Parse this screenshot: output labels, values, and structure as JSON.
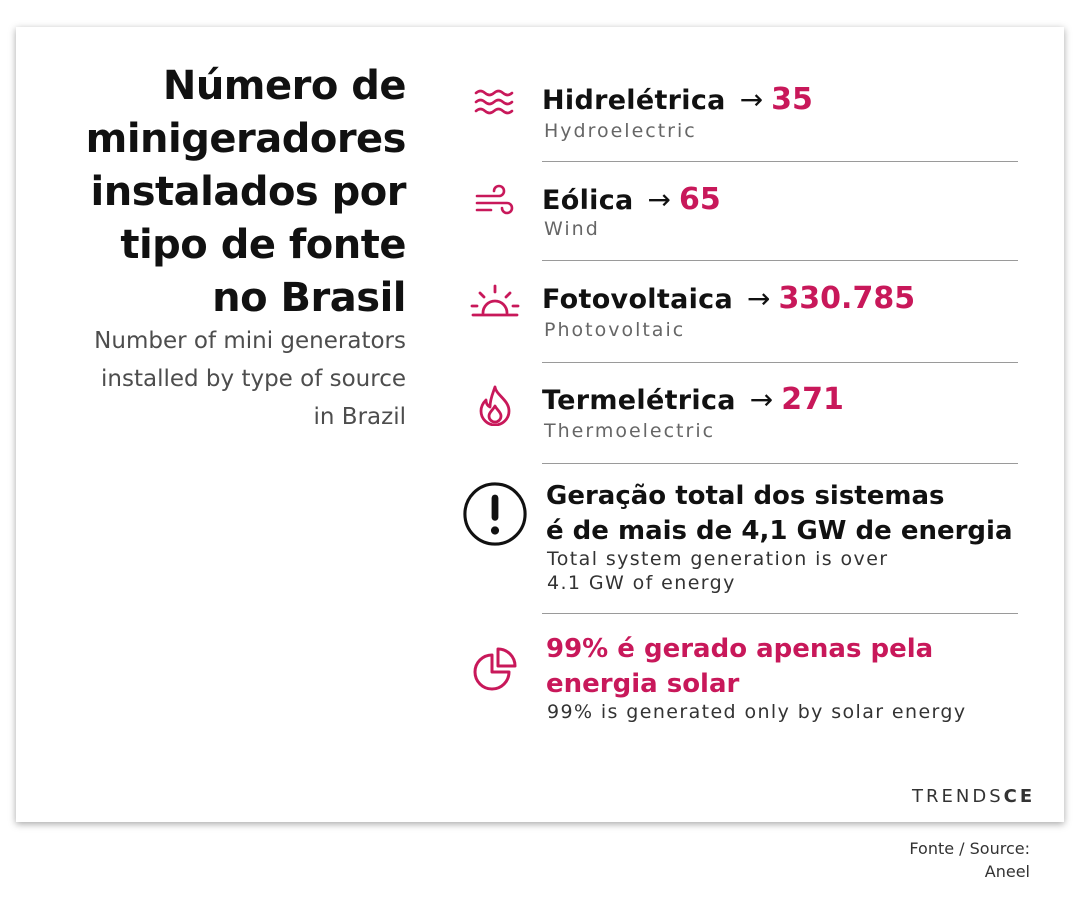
{
  "title_lines": [
    "Número de",
    "minigeradores",
    "instalados por",
    "tipo de fonte",
    "no Brasil"
  ],
  "subtitle_lines": [
    "Number of mini generators",
    "installed by  type of source",
    "in Brazil"
  ],
  "arrow": "→",
  "sources": [
    {
      "name": "Hidrelétrica",
      "value": "35",
      "english": "Hydroelectric",
      "icon": "water-waves-icon"
    },
    {
      "name": "Eólica",
      "value": "65",
      "english": "Wind",
      "icon": "wind-icon"
    },
    {
      "name": "Fotovoltaica",
      "value": "330.785",
      "english": "Photovoltaic",
      "icon": "sunrise-icon"
    },
    {
      "name": "Termelétrica",
      "value": "271",
      "english": "Thermoelectric",
      "icon": "flame-icon"
    }
  ],
  "notes": [
    {
      "title_lines": [
        "Geração total dos sistemas",
        "é de mais de 4,1 GW de energia"
      ],
      "english_lines": [
        "Total system generation is over",
        "4.1 GW of energy"
      ],
      "icon": "exclamation-circle-icon"
    },
    {
      "title_lines": [
        "99% é gerado apenas pela",
        "energia solar"
      ],
      "english_lines": [
        "99% is generated only by solar energy"
      ],
      "icon": "pie-chart-icon"
    }
  ],
  "brand": {
    "light": "TRENDS",
    "bold": "CE"
  },
  "source_lines": [
    "Fonte / Source:",
    "Aneel"
  ],
  "colors": {
    "accent": "#c8185a",
    "text": "#111111",
    "muted": "#666666"
  }
}
